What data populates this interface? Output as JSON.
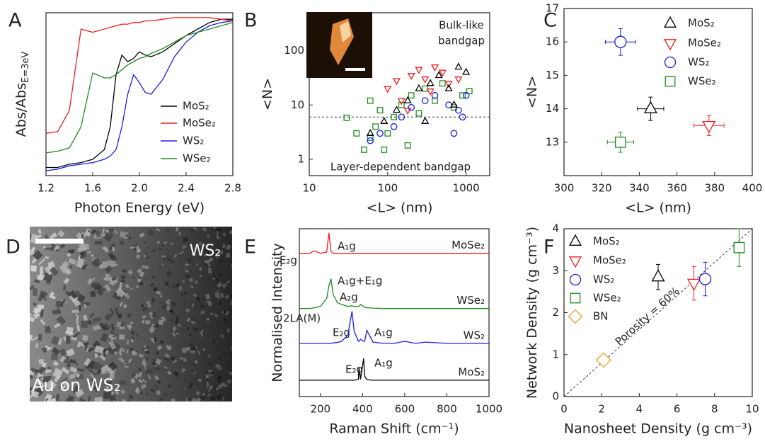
{
  "chart_data": [
    {
      "panel_label": "A",
      "type": "line",
      "xlabel": "Photon Energy (eV)",
      "ylabel": "Abs/Abs",
      "ylabel_subscript": "E=3eV",
      "x": [
        1.2,
        1.3,
        1.4,
        1.5,
        1.6,
        1.7,
        1.75,
        1.8,
        1.85,
        1.9,
        1.95,
        2.0,
        2.05,
        2.1,
        2.2,
        2.3,
        2.4,
        2.5,
        2.6,
        2.7,
        2.8
      ],
      "xlim": [
        1.2,
        2.8
      ],
      "xticks": [
        1.2,
        1.6,
        {
          "value": 2,
          "label": "2.0"
        },
        2.4,
        2.8
      ],
      "ylim": [
        0,
        1
      ],
      "series": [
        {
          "name": "MoS₂",
          "color": "#000000",
          "values": [
            0.05,
            0.05,
            0.07,
            0.08,
            0.1,
            0.16,
            0.3,
            0.62,
            0.74,
            0.7,
            0.72,
            0.76,
            0.74,
            0.73,
            0.76,
            0.81,
            0.86,
            0.9,
            0.94,
            0.96,
            0.96
          ]
        },
        {
          "name": "MoSe₂",
          "color": "#ee1c1c",
          "values": [
            0.26,
            0.27,
            0.4,
            0.9,
            0.88,
            0.9,
            0.91,
            0.92,
            0.93,
            0.93,
            0.94,
            0.94,
            0.95,
            0.95,
            0.96,
            0.97,
            0.97,
            0.97,
            0.97,
            0.96,
            0.95
          ]
        },
        {
          "name": "WS₂",
          "color": "#1c1ce6",
          "values": [
            0.03,
            0.04,
            0.06,
            0.07,
            0.08,
            0.1,
            0.12,
            0.16,
            0.3,
            0.5,
            0.62,
            0.57,
            0.51,
            0.5,
            0.59,
            0.73,
            0.82,
            0.88,
            0.92,
            0.94,
            0.95
          ]
        },
        {
          "name": "WSe₂",
          "color": "#1e8c1e",
          "values": [
            0.14,
            0.15,
            0.17,
            0.3,
            0.63,
            0.6,
            0.6,
            0.62,
            0.65,
            0.68,
            0.7,
            0.72,
            0.73,
            0.75,
            0.78,
            0.82,
            0.86,
            0.88,
            0.9,
            0.92,
            0.94
          ]
        }
      ]
    },
    {
      "panel_label": "B",
      "type": "scatter",
      "xlabel": "<L> (nm)",
      "ylabel": "<N>",
      "xscale": "log",
      "yscale": "log",
      "xlim": [
        10,
        2000
      ],
      "ylim": [
        0.5,
        500
      ],
      "xticks": [
        10,
        100,
        1000
      ],
      "yticks": [
        1,
        10,
        100
      ],
      "hline": 6,
      "annotations": [
        "Bulk-like",
        "bandgap",
        "Layer-dependent bandgap"
      ],
      "series": [
        {
          "name": "WSe₂",
          "color": "#1e8c1e",
          "marker": "square",
          "x": [
            30,
            40,
            50,
            60,
            70,
            80,
            100,
            120,
            150,
            180,
            200,
            250,
            300,
            400,
            500,
            700,
            900,
            1100,
            60,
            90
          ],
          "values": [
            5.8,
            3,
            1.5,
            2.5,
            4,
            8,
            3,
            6,
            10,
            1.8,
            15,
            7,
            20,
            12,
            25,
            9,
            15,
            18,
            12,
            1.5
          ]
        },
        {
          "name": "MoSe₂",
          "color": "#ee1c1c",
          "marker": "triangle-down",
          "x": [
            100,
            130,
            150,
            200,
            250,
            300,
            400,
            500,
            600,
            800,
            180,
            350
          ],
          "values": [
            20,
            28,
            12,
            35,
            45,
            30,
            50,
            40,
            25,
            30,
            8,
            18
          ]
        },
        {
          "name": "WS₂",
          "color": "#1c1ce6",
          "marker": "circle",
          "x": [
            60,
            80,
            120,
            150,
            200,
            300,
            400,
            600,
            800,
            1000,
            700,
            900
          ],
          "values": [
            2.2,
            3,
            4,
            6,
            9,
            12,
            15,
            10,
            8,
            15,
            3,
            6
          ]
        },
        {
          "name": "MoS₂",
          "color": "#000000",
          "marker": "triangle",
          "x": [
            60,
            90,
            130,
            180,
            250,
            350,
            450,
            600,
            800,
            1000,
            300,
            700
          ],
          "values": [
            3,
            5,
            8,
            12,
            20,
            25,
            35,
            20,
            50,
            40,
            5,
            10
          ]
        }
      ]
    },
    {
      "panel_label": "C",
      "type": "errorbar",
      "xlabel": "<L> (nm)",
      "ylabel": "<N>",
      "xlim": [
        300,
        400
      ],
      "ylim": [
        12,
        17
      ],
      "xticks": [
        300,
        320,
        340,
        360,
        380,
        400
      ],
      "yticks": [
        13,
        14,
        15,
        16,
        17
      ],
      "series": [
        {
          "name": "MoS₂",
          "color": "#000000",
          "marker": "triangle",
          "x": [
            346
          ],
          "values": [
            14
          ],
          "xerr": [
            7
          ],
          "yerr": [
            0.35
          ]
        },
        {
          "name": "MoSe₂",
          "color": "#ee1c1c",
          "marker": "triangle-down",
          "x": [
            377
          ],
          "values": [
            13.5
          ],
          "xerr": [
            8
          ],
          "yerr": [
            0.3
          ]
        },
        {
          "name": "WS₂",
          "color": "#1c1ce6",
          "marker": "circle",
          "x": [
            330
          ],
          "values": [
            16
          ],
          "xerr": [
            8
          ],
          "yerr": [
            0.4
          ]
        },
        {
          "name": "WSe₂",
          "color": "#1e8c1e",
          "marker": "square",
          "x": [
            330
          ],
          "values": [
            13
          ],
          "xerr": [
            7
          ],
          "yerr": [
            0.3
          ]
        }
      ]
    },
    {
      "panel_label": "D",
      "type": "image",
      "annotations": [
        "WS₂",
        "Au on WS₂"
      ]
    },
    {
      "panel_label": "E",
      "type": "line",
      "xlabel": "Raman Shift (cm⁻¹)",
      "ylabel": "Normalised Intensity",
      "x": [
        100,
        150,
        170,
        200,
        230,
        240,
        250,
        260,
        280,
        300,
        330,
        350,
        360,
        380,
        383,
        390,
        405,
        410,
        420,
        450,
        500,
        550,
        600,
        650,
        700,
        800,
        900,
        1000
      ],
      "xlim": [
        100,
        1000
      ],
      "xticks": [
        200,
        400,
        600,
        800,
        1000
      ],
      "ylim": [
        0,
        4.1
      ],
      "annotations": [
        "E₂g",
        "A₁g",
        "A₁g+E₁g",
        "A₂g",
        "2LA(M)",
        "E₂g",
        "A₁g",
        "E₂g",
        "A₁g"
      ],
      "series": [
        {
          "name": "MoSe₂",
          "color": "#ee1c1c",
          "values": [
            3.5,
            3.5,
            3.56,
            3.5,
            3.53,
            4.0,
            3.55,
            3.5,
            3.5,
            3.5,
            3.5,
            3.5,
            3.5,
            3.5,
            3.5,
            3.5,
            3.5,
            3.5,
            3.5,
            3.5,
            3.5,
            3.5,
            3.5,
            3.5,
            3.5,
            3.5,
            3.5,
            3.5
          ]
        },
        {
          "name": "WSe₂",
          "color": "#1e8c1e",
          "values": [
            2.15,
            2.15,
            2.17,
            2.2,
            2.4,
            2.7,
            2.88,
            2.5,
            2.3,
            2.25,
            2.2,
            2.22,
            2.2,
            2.2,
            2.2,
            2.25,
            2.2,
            2.18,
            2.17,
            2.16,
            2.15,
            2.15,
            2.15,
            2.15,
            2.15,
            2.15,
            2.15,
            2.15
          ]
        },
        {
          "name": "WS₂",
          "color": "#1c1ce6",
          "values": [
            1.3,
            1.3,
            1.3,
            1.3,
            1.3,
            1.3,
            1.3,
            1.31,
            1.32,
            1.35,
            1.5,
            2.08,
            1.6,
            1.35,
            1.35,
            1.4,
            1.35,
            1.35,
            1.62,
            1.33,
            1.3,
            1.3,
            1.35,
            1.3,
            1.33,
            1.3,
            1.3,
            1.3
          ]
        },
        {
          "name": "MoS₂",
          "color": "#000000",
          "values": [
            0.4,
            0.4,
            0.4,
            0.4,
            0.4,
            0.4,
            0.4,
            0.4,
            0.4,
            0.4,
            0.4,
            0.4,
            0.4,
            0.42,
            0.7,
            0.42,
            0.93,
            0.5,
            0.41,
            0.4,
            0.4,
            0.4,
            0.4,
            0.4,
            0.4,
            0.4,
            0.4,
            0.4
          ]
        }
      ]
    },
    {
      "panel_label": "F",
      "type": "errorbar",
      "xlabel": "Nanosheet Density (g cm⁻³)",
      "ylabel": "Network Density (g cm⁻³)",
      "xlim": [
        0,
        10
      ],
      "ylim": [
        0,
        4
      ],
      "xticks": [
        0,
        2,
        4,
        6,
        8,
        10
      ],
      "yticks": [
        0,
        1,
        2,
        3,
        4
      ],
      "reference_line": {
        "x": [
          0,
          10
        ],
        "values": [
          0,
          4
        ]
      },
      "annotations": [
        "Porosity = 60%"
      ],
      "series": [
        {
          "name": "MoS₂",
          "color": "#000000",
          "marker": "triangle",
          "x": [
            5.0
          ],
          "values": [
            2.85
          ],
          "xerr": [
            null
          ],
          "yerr": [
            0.3
          ]
        },
        {
          "name": "MoSe₂",
          "color": "#ee1c1c",
          "marker": "triangle-down",
          "x": [
            6.9
          ],
          "values": [
            2.7
          ],
          "xerr": [
            null
          ],
          "yerr": [
            0.4
          ]
        },
        {
          "name": "WS₂",
          "color": "#1c1ce6",
          "marker": "circle",
          "x": [
            7.5
          ],
          "values": [
            2.8
          ],
          "xerr": [
            0.3
          ],
          "yerr": [
            0.4
          ]
        },
        {
          "name": "WSe₂",
          "color": "#1e8c1e",
          "marker": "square",
          "x": [
            9.3
          ],
          "values": [
            3.55
          ],
          "xerr": [
            0.2
          ],
          "yerr": [
            0.45
          ]
        },
        {
          "name": "BN",
          "color": "#f39a2b",
          "marker": "diamond",
          "x": [
            2.1
          ],
          "values": [
            0.87
          ],
          "xerr": [
            0.1
          ],
          "yerr": [
            null
          ]
        }
      ]
    }
  ]
}
